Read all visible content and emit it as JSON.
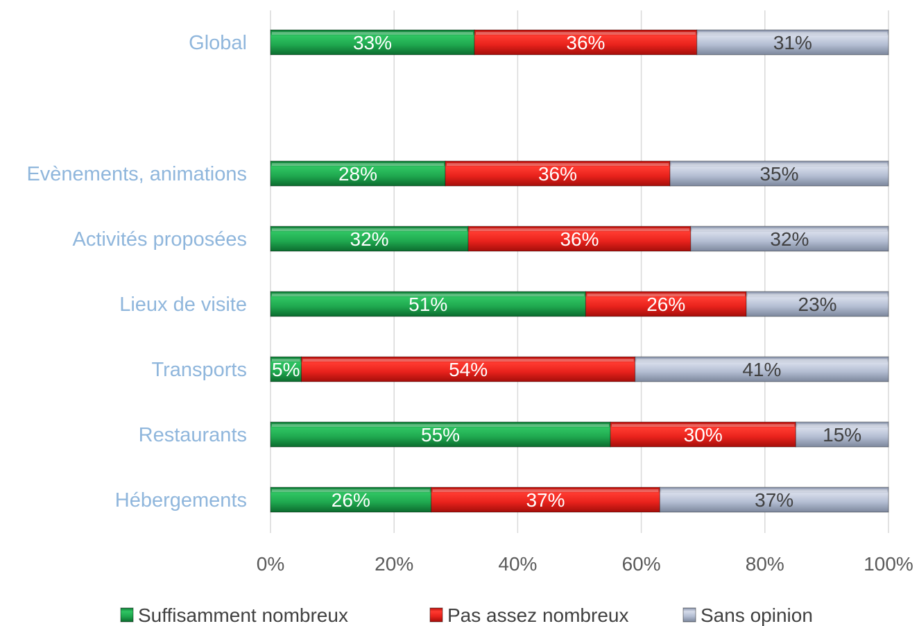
{
  "chart_data": {
    "type": "bar",
    "orientation": "horizontal",
    "stacked": "percent",
    "categories": [
      "Global",
      "Evènements, animations",
      "Activités proposées",
      "Lieux de visite",
      "Transports",
      "Restaurants",
      "Hébergements"
    ],
    "series": [
      {
        "name": "Suffisamment nombreux",
        "color": "#1fa84f",
        "values": [
          33,
          28,
          32,
          51,
          5,
          55,
          26
        ],
        "labels": [
          "33%",
          "28%",
          "32%",
          "51%",
          "5%",
          "55%",
          "26%"
        ]
      },
      {
        "name": "Pas assez nombreux",
        "color": "#e8221c",
        "values": [
          36,
          36,
          36,
          26,
          54,
          30,
          37
        ],
        "labels": [
          "36%",
          "36%",
          "36%",
          "26%",
          "54%",
          "30%",
          "37%"
        ]
      },
      {
        "name": "Sans opinion",
        "color": "#aab6cc",
        "values": [
          31,
          35,
          32,
          23,
          41,
          15,
          37
        ],
        "labels": [
          "31%",
          "35%",
          "32%",
          "23%",
          "41%",
          "15%",
          "37%"
        ]
      }
    ],
    "xticks": [
      "0%",
      "20%",
      "40%",
      "60%",
      "80%",
      "100%"
    ],
    "xlim": [
      0,
      100
    ],
    "grid": "vertical",
    "legend": "bottom",
    "title": "",
    "xlabel": "",
    "ylabel": ""
  }
}
